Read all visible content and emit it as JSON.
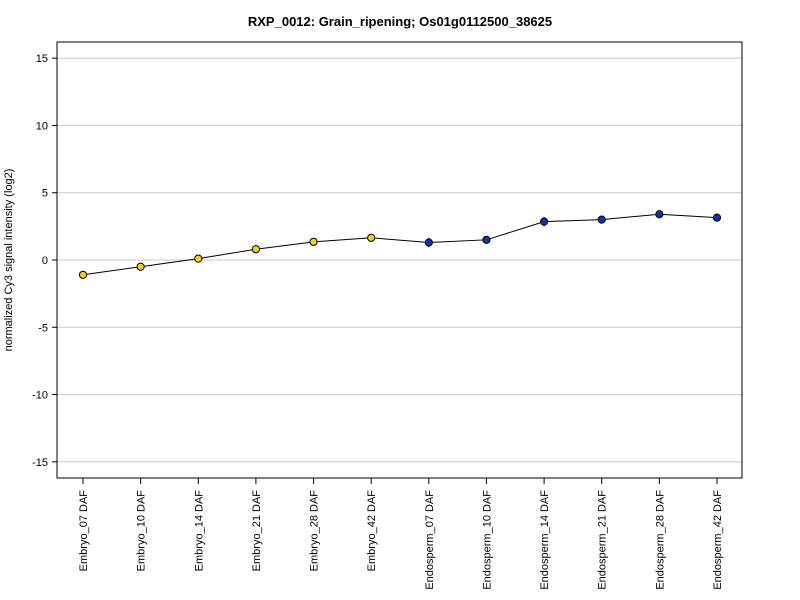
{
  "chart_data": {
    "type": "line",
    "title": "RXP_0012: Grain_ripening; Os01g0112500_38625",
    "xlabel": "",
    "ylabel": "normalized Cy3 signal intensity (log2)",
    "ylim": [
      -16.2,
      16.2
    ],
    "yticks": [
      -15,
      -10,
      -5,
      0,
      5,
      10,
      15
    ],
    "grid": true,
    "categories": [
      "Embryo_07 DAF",
      "Embryo_10 DAF",
      "Embryo_14 DAF",
      "Embryo_21 DAF",
      "Embryo_28 DAF",
      "Embryo_42 DAF",
      "Endosperm_07 DAF",
      "Endosperm_10 DAF",
      "Endosperm_14 DAF",
      "Endosperm_21 DAF",
      "Endosperm_28 DAF",
      "Endosperm_42 DAF"
    ],
    "series": [
      {
        "values": [
          -1.1,
          -0.5,
          0.1,
          0.8,
          1.35,
          1.65,
          1.3,
          1.5,
          2.85,
          3.0,
          3.4,
          3.15
        ],
        "errors": [
          0.15,
          0.2,
          0.15,
          0.15,
          0.1,
          0.2,
          0.35,
          0.25,
          0.35,
          0.15,
          0.1,
          0.15
        ],
        "point_colors": [
          "#f0d020",
          "#f0d020",
          "#f0d020",
          "#f0d020",
          "#f0d020",
          "#f0d020",
          "#1a2fa8",
          "#1a2fa8",
          "#1a2fa8",
          "#1a2fa8",
          "#1a2fa8",
          "#1a2fa8"
        ]
      }
    ],
    "line_color": "#000000",
    "grid_color": "#c8c8c8"
  }
}
